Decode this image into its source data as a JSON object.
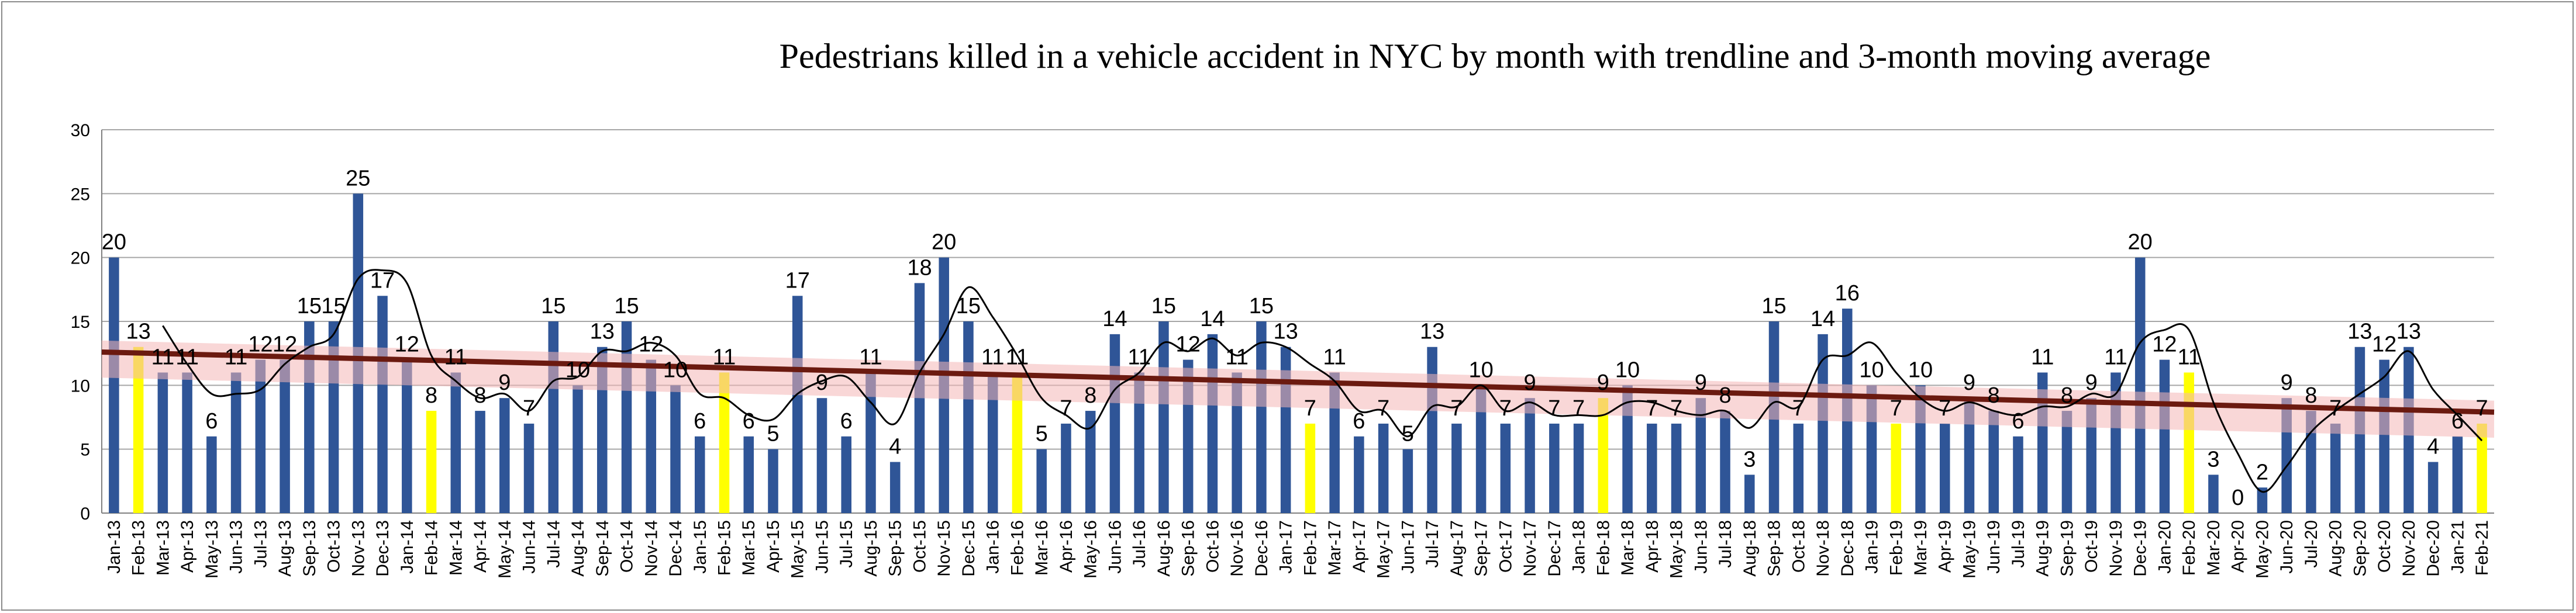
{
  "chart_data": {
    "type": "bar",
    "title": "Pedestrians killed in a vehicle accident  in NYC  by month with trendline and 3-month moving average",
    "xlabel": "",
    "ylabel": "",
    "ylim": [
      0,
      30
    ],
    "yticks": [
      0,
      5,
      10,
      15,
      20,
      25,
      30
    ],
    "grid": true,
    "legend": "none",
    "colors": {
      "bar": "#2f5597",
      "highlight_bar": "#ffff00",
      "trendline": "#6b1a10",
      "trend_band": "#f4b6b6",
      "moving_average": "#000000",
      "gridline": "#a6a6a6"
    },
    "categories": [
      "Jan-13",
      "Feb-13",
      "Mar-13",
      "Apr-13",
      "May-13",
      "Jun-13",
      "Jul-13",
      "Aug-13",
      "Sep-13",
      "Oct-13",
      "Nov-13",
      "Dec-13",
      "Jan-14",
      "Feb-14",
      "Mar-14",
      "Apr-14",
      "May-14",
      "Jun-14",
      "Jul-14",
      "Aug-14",
      "Sep-14",
      "Oct-14",
      "Nov-14",
      "Dec-14",
      "Jan-15",
      "Feb-15",
      "Mar-15",
      "Apr-15",
      "May-15",
      "Jun-15",
      "Jul-15",
      "Aug-15",
      "Sep-15",
      "Oct-15",
      "Nov-15",
      "Dec-15",
      "Jan-16",
      "Feb-16",
      "Mar-16",
      "Apr-16",
      "May-16",
      "Jun-16",
      "Jul-16",
      "Aug-16",
      "Sep-16",
      "Oct-16",
      "Nov-16",
      "Dec-16",
      "Jan-17",
      "Feb-17",
      "Mar-17",
      "Apr-17",
      "May-17",
      "Jun-17",
      "Jul-17",
      "Aug-17",
      "Sep-17",
      "Oct-17",
      "Nov-17",
      "Dec-17",
      "Jan-18",
      "Feb-18",
      "Mar-18",
      "Apr-18",
      "May-18",
      "Jun-18",
      "Jul-18",
      "Aug-18",
      "Sep-18",
      "Oct-18",
      "Nov-18",
      "Dec-18",
      "Jan-19",
      "Feb-19",
      "Mar-19",
      "Apr-19",
      "May-19",
      "Jun-19",
      "Jul-19",
      "Aug-19",
      "Sep-19",
      "Oct-19",
      "Nov-19",
      "Dec-19",
      "Jan-20",
      "Feb-20",
      "Mar-20",
      "Apr-20",
      "May-20",
      "Jun-20",
      "Jul-20",
      "Aug-20",
      "Sep-20",
      "Oct-20",
      "Nov-20",
      "Dec-20",
      "Jan-21",
      "Feb-21"
    ],
    "values": [
      20,
      13,
      11,
      11,
      6,
      11,
      12,
      12,
      15,
      15,
      25,
      17,
      12,
      8,
      11,
      8,
      9,
      7,
      15,
      10,
      13,
      15,
      12,
      10,
      6,
      11,
      6,
      5,
      17,
      9,
      6,
      11,
      4,
      18,
      20,
      15,
      11,
      11,
      5,
      7,
      8,
      14,
      11,
      15,
      12,
      14,
      11,
      15,
      13,
      7,
      11,
      6,
      7,
      5,
      13,
      7,
      10,
      7,
      9,
      7,
      7,
      9,
      10,
      7,
      7,
      9,
      8,
      3,
      15,
      7,
      14,
      16,
      10,
      7,
      10,
      7,
      9,
      8,
      6,
      11,
      8,
      9,
      11,
      20,
      12,
      11,
      3,
      0,
      2,
      9,
      8,
      7,
      13,
      12,
      13,
      4,
      6,
      7
    ],
    "highlight_indices": [
      1,
      13,
      25,
      37,
      49,
      61,
      73,
      85,
      97
    ],
    "trendline": {
      "start": 12.6,
      "end": 7.9
    }
  }
}
